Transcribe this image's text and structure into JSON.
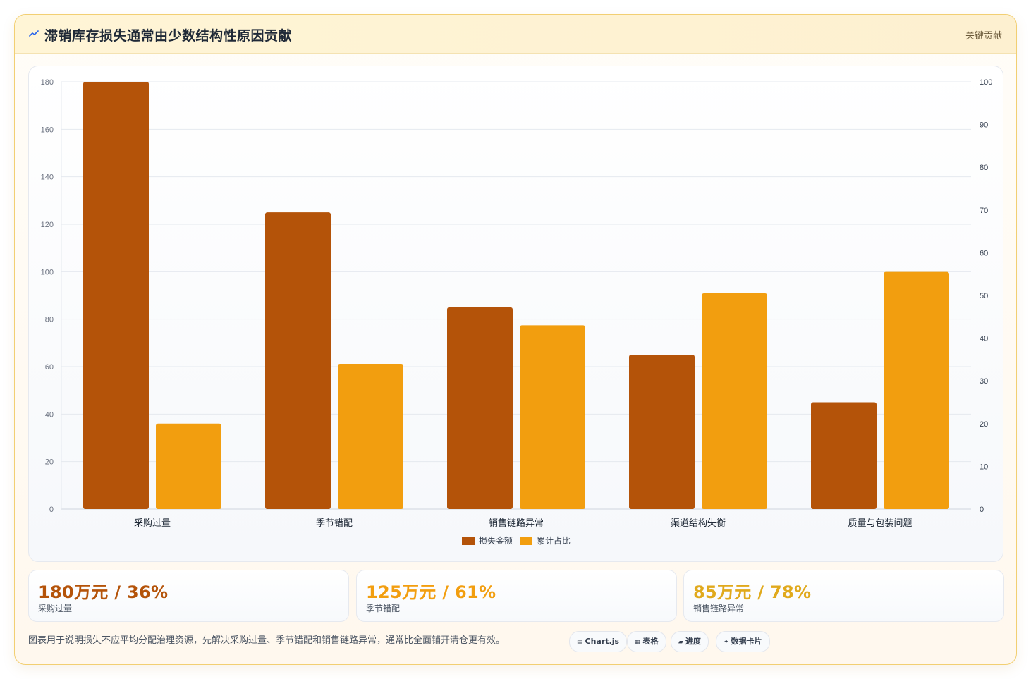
{
  "header": {
    "title": "滞销库存损失通常由少数结构性原因贡献",
    "tag": "关键贡献"
  },
  "chart_data": {
    "type": "bar",
    "categories": [
      "采购过量",
      "季节错配",
      "销售链路异常",
      "渠道结构失衡",
      "质量与包装问题"
    ],
    "series": [
      {
        "name": "损失金额",
        "values": [
          180,
          125,
          85,
          65,
          45
        ],
        "axis": "left",
        "color": "#b45309"
      },
      {
        "name": "累计占比",
        "values": [
          20,
          34,
          43,
          50.5,
          55.5
        ],
        "axis": "right",
        "color": "#f29e0f"
      }
    ],
    "y_left": {
      "min": 0,
      "max": 180,
      "ticks": [
        0,
        20,
        40,
        60,
        80,
        100,
        120,
        140,
        160,
        180
      ]
    },
    "y_right": {
      "min": 0,
      "max": 100,
      "ticks": [
        0,
        10,
        20,
        30,
        40,
        50,
        60,
        70,
        80,
        90,
        100
      ]
    },
    "grid": true,
    "legend_position": "bottom"
  },
  "stats": [
    {
      "value": "180万元 / 36%",
      "label": "采购过量",
      "color": "#b45309"
    },
    {
      "value": "125万元 / 61%",
      "label": "季节错配",
      "color": "#f29e0f"
    },
    {
      "value": "85万元 / 78%",
      "label": "销售链路异常",
      "color": "#e0a91c"
    }
  ],
  "footnote": "图表用于说明损失不应平均分配治理资源，先解决采购过量、季节错配和销售链路异常，通常比全面铺开清仓更有效。",
  "chips": [
    {
      "glyph": "▤",
      "label": "Chart.js"
    },
    {
      "glyph": "▦",
      "label": "表格"
    },
    {
      "glyph": "▰",
      "label": "进度"
    },
    {
      "glyph": "✦",
      "label": "数据卡片"
    }
  ]
}
